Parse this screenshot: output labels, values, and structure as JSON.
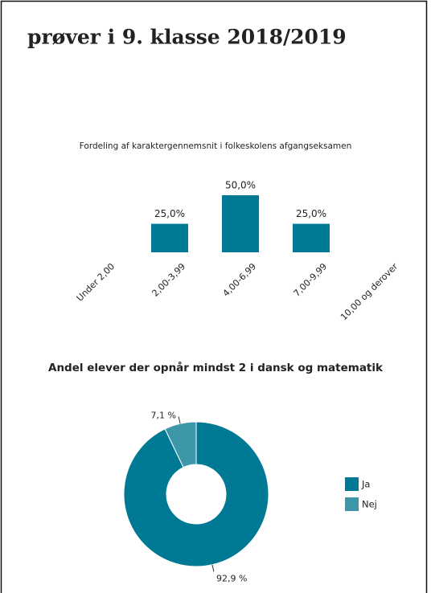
{
  "page_title": "prøver i 9. klasse 2018/2019",
  "chart_data": [
    {
      "type": "bar",
      "title": "Fordeling af karaktergennemsnit i folkeskolens afgangseksamen",
      "categories": [
        "Under 2,00",
        "2,00-3,99",
        "4,00-6,99",
        "7,00-9,99",
        "10,00 og derover"
      ],
      "values": [
        null,
        25,
        50,
        25,
        null
      ],
      "value_labels": [
        null,
        "25,0%",
        "50,0%",
        "25,0%",
        null
      ],
      "color": "#007a94"
    },
    {
      "type": "pie",
      "title": "Andel elever der opnår mindst 2 i dansk og matematik",
      "categories": [
        "Ja",
        "Nej"
      ],
      "values": [
        92.9,
        7.1
      ],
      "value_labels": [
        "92,9 %",
        "7,1 %"
      ],
      "colors": [
        "#007a94",
        "#3d97a9"
      ],
      "donut": true,
      "legend": "right"
    }
  ]
}
